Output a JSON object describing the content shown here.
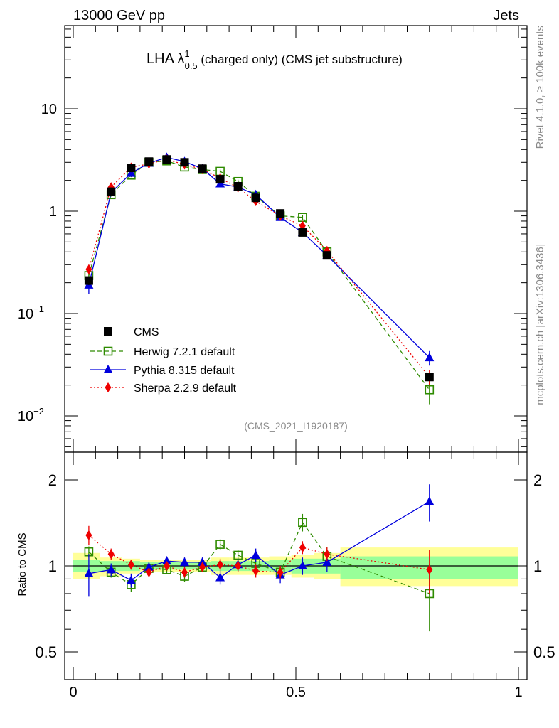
{
  "header": {
    "left": "13000 GeV pp",
    "right": "Jets"
  },
  "side_labels": {
    "rivet": "Rivet 4.1.0, ≥ 100k events",
    "mcplots": "mcplots.cern.ch [arXiv:1306.3436]"
  },
  "plot": {
    "title": "LHA λ",
    "title_sup": "1",
    "title_sub": "0.5",
    "title_rest": " (charged only) (CMS jet substructure)",
    "analysis": "(CMS_2021_I1920187)"
  },
  "ratio": {
    "ylabel": "Ratio to CMS"
  },
  "colors": {
    "cms": "#000000",
    "herwig": "#2e8b00",
    "pythia": "#0000dd",
    "sherpa": "#ee0000",
    "band_inner": "#99ff99",
    "band_outer": "#ffff99"
  },
  "chart_data": [
    {
      "type": "line",
      "panel": "main",
      "yscale": "log",
      "xlim": [
        0,
        1
      ],
      "ylim": [
        0.005,
        60
      ],
      "yticks": [
        {
          "value": 10,
          "label": "10",
          "sup": ""
        },
        {
          "value": 1,
          "label": "1",
          "sup": ""
        },
        {
          "value": 0.1,
          "label": "10",
          "sup": "−1"
        },
        {
          "value": 0.01,
          "label": "10",
          "sup": "−2"
        }
      ],
      "x": [
        0.035,
        0.085,
        0.13,
        0.17,
        0.21,
        0.25,
        0.29,
        0.33,
        0.37,
        0.41,
        0.465,
        0.515,
        0.57,
        0.8
      ],
      "series": [
        {
          "name": "CMS",
          "key": "cms",
          "values": [
            0.21,
            1.55,
            2.65,
            3.05,
            3.2,
            3.0,
            2.6,
            2.05,
            1.75,
            1.35,
            0.95,
            0.62,
            0.37,
            0.024
          ],
          "errors": [
            0.02,
            0.08,
            0.12,
            0.12,
            0.12,
            0.12,
            0.1,
            0.09,
            0.08,
            0.06,
            0.05,
            0.04,
            0.03,
            0.002
          ]
        },
        {
          "name": "Herwig 7.2.1 default",
          "key": "herwig",
          "values": [
            0.235,
            1.45,
            2.25,
            3.0,
            3.1,
            2.7,
            2.55,
            2.45,
            1.95,
            1.4,
            0.9,
            0.87,
            0.4,
            0.018
          ],
          "errors": [
            0.03,
            0.06,
            0.1,
            0.1,
            0.1,
            0.1,
            0.1,
            0.1,
            0.08,
            0.06,
            0.05,
            0.05,
            0.03,
            0.005
          ]
        },
        {
          "name": "Pythia 8.315 default",
          "key": "pythia",
          "values": [
            0.19,
            1.52,
            2.35,
            2.95,
            3.35,
            3.05,
            2.6,
            1.85,
            1.72,
            1.45,
            0.87,
            0.62,
            0.37,
            0.037
          ],
          "errors": [
            0.035,
            0.07,
            0.1,
            0.1,
            0.12,
            0.1,
            0.1,
            0.09,
            0.08,
            0.07,
            0.05,
            0.04,
            0.03,
            0.006
          ]
        },
        {
          "name": "Sherpa 2.2.9 default",
          "key": "sherpa",
          "values": [
            0.27,
            1.72,
            2.68,
            2.9,
            3.2,
            2.85,
            2.57,
            2.1,
            1.7,
            1.25,
            0.9,
            0.72,
            0.41,
            0.024
          ],
          "errors": [
            0.03,
            0.06,
            0.1,
            0.1,
            0.1,
            0.1,
            0.1,
            0.09,
            0.08,
            0.06,
            0.05,
            0.04,
            0.03,
            0.004
          ]
        }
      ],
      "legend": "top-left"
    },
    {
      "type": "line",
      "panel": "ratio",
      "yscale": "log",
      "xlim": [
        0,
        1
      ],
      "ylim": [
        0.4,
        2.4
      ],
      "ylabel": "Ratio to CMS",
      "yticks": [
        {
          "value": 2,
          "label": "2"
        },
        {
          "value": 1,
          "label": "1"
        },
        {
          "value": 0.5,
          "label": "0.5"
        }
      ],
      "xticks": [
        {
          "value": 0,
          "label": "0"
        },
        {
          "value": 0.5,
          "label": "0.5"
        },
        {
          "value": 1,
          "label": "1"
        }
      ],
      "x": [
        0.035,
        0.085,
        0.13,
        0.17,
        0.21,
        0.25,
        0.29,
        0.33,
        0.37,
        0.41,
        0.465,
        0.515,
        0.57,
        0.8
      ],
      "bands": {
        "edges": [
          0.0,
          0.06,
          0.11,
          0.15,
          0.19,
          0.23,
          0.27,
          0.31,
          0.35,
          0.39,
          0.44,
          0.49,
          0.54,
          0.6,
          1.0
        ],
        "inner": [
          [
            0.95,
            1.05
          ],
          [
            0.96,
            1.04
          ],
          [
            0.96,
            1.04
          ],
          [
            0.97,
            1.03
          ],
          [
            0.97,
            1.03
          ],
          [
            0.97,
            1.03
          ],
          [
            0.97,
            1.03
          ],
          [
            0.96,
            1.04
          ],
          [
            0.96,
            1.04
          ],
          [
            0.96,
            1.04
          ],
          [
            0.95,
            1.05
          ],
          [
            0.94,
            1.06
          ],
          [
            0.94,
            1.06
          ],
          [
            0.9,
            1.08
          ]
        ],
        "outer": [
          [
            0.9,
            1.11
          ],
          [
            0.92,
            1.07
          ],
          [
            0.94,
            1.06
          ],
          [
            0.95,
            1.05
          ],
          [
            0.95,
            1.05
          ],
          [
            0.95,
            1.05
          ],
          [
            0.95,
            1.05
          ],
          [
            0.93,
            1.07
          ],
          [
            0.93,
            1.07
          ],
          [
            0.93,
            1.07
          ],
          [
            0.93,
            1.08
          ],
          [
            0.91,
            1.09
          ],
          [
            0.9,
            1.11
          ],
          [
            0.85,
            1.16
          ]
        ]
      },
      "series": [
        {
          "name": "Herwig 7.2.1 default",
          "key": "herwig",
          "values": [
            1.12,
            0.95,
            0.86,
            0.98,
            0.97,
            0.92,
            0.99,
            1.19,
            1.09,
            1.02,
            0.95,
            1.42,
            1.08,
            0.8
          ],
          "errors": [
            0.05,
            0.04,
            0.05,
            0.03,
            0.03,
            0.04,
            0.03,
            0.05,
            0.05,
            0.04,
            0.05,
            0.1,
            0.08,
            0.21
          ]
        },
        {
          "name": "Pythia 8.315 default",
          "key": "pythia",
          "values": [
            0.94,
            0.97,
            0.89,
            0.99,
            1.04,
            1.03,
            1.03,
            0.91,
            1.01,
            1.09,
            0.93,
            1.0,
            1.03,
            1.68
          ],
          "errors": [
            0.16,
            0.05,
            0.05,
            0.04,
            0.04,
            0.04,
            0.04,
            0.05,
            0.05,
            0.06,
            0.06,
            0.07,
            0.08,
            0.25
          ]
        },
        {
          "name": "Sherpa 2.2.9 default",
          "key": "sherpa",
          "values": [
            1.28,
            1.1,
            1.01,
            0.95,
            1.0,
            0.95,
            0.99,
            1.01,
            1.0,
            0.96,
            0.95,
            1.16,
            1.1,
            0.97
          ],
          "errors": [
            0.1,
            0.05,
            0.04,
            0.03,
            0.03,
            0.04,
            0.04,
            0.05,
            0.05,
            0.05,
            0.05,
            0.06,
            0.06,
            0.17
          ]
        }
      ]
    }
  ]
}
